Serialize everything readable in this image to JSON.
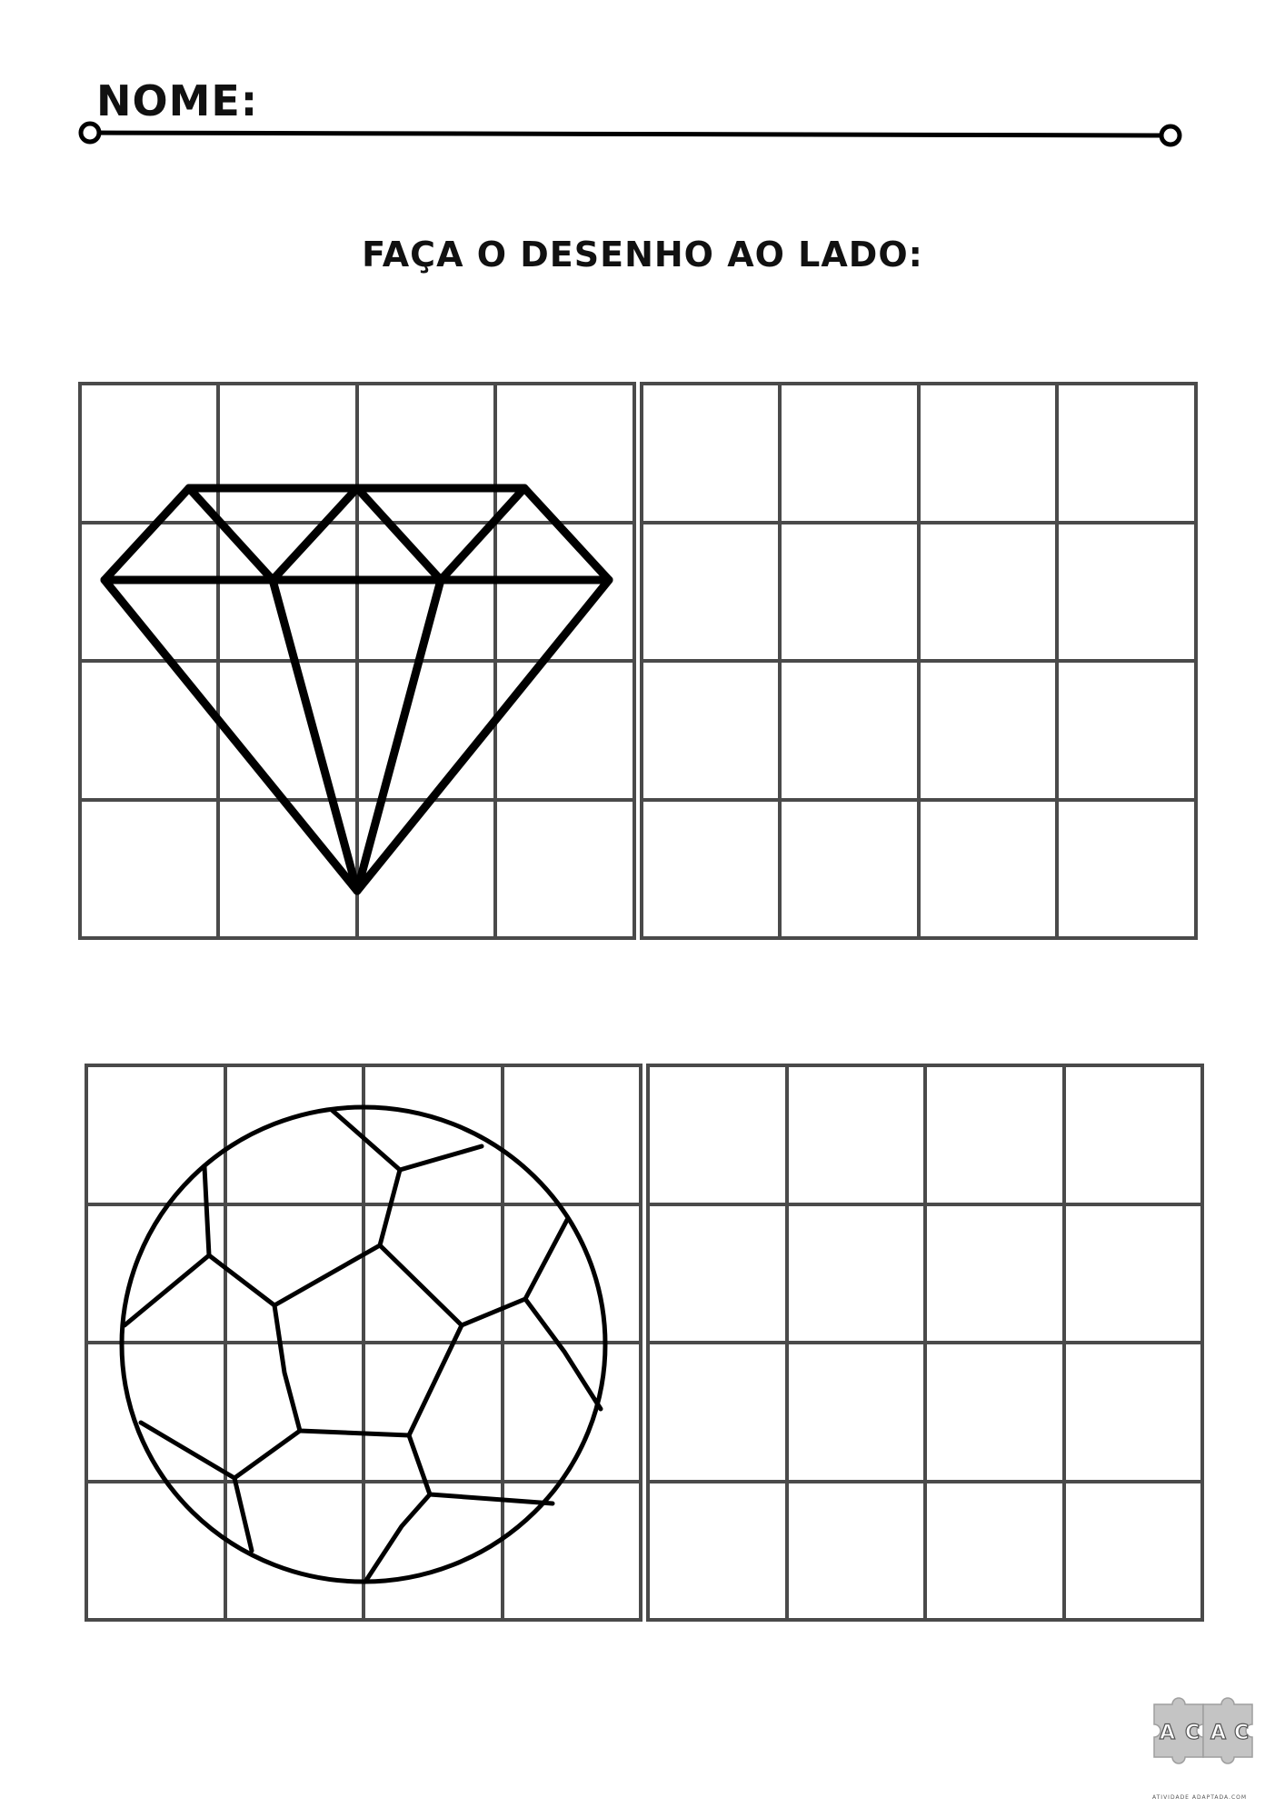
{
  "header": {
    "name_label": "NOME:"
  },
  "instruction": "FAÇA O DESENHO AO LADO:",
  "exercises": [
    {
      "drawing": "diamond-drawing",
      "grid": {
        "rows": 4,
        "cols": 4
      },
      "copy_grid": {
        "rows": 4,
        "cols": 4
      }
    },
    {
      "drawing": "soccer-ball-drawing",
      "grid": {
        "rows": 4,
        "cols": 4
      },
      "copy_grid": {
        "rows": 4,
        "cols": 4
      }
    }
  ],
  "logo": {
    "letters": "ACAC",
    "caption": "ATIVIDADE ADAPTADA.COM"
  },
  "colors": {
    "grid": "#4a4a4a",
    "ink": "#000000",
    "logo": "#bdbdbd"
  }
}
